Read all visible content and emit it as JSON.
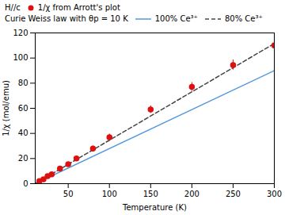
{
  "chart_data": {
    "type": "scatter",
    "title": "",
    "xlabel": "Temperature (K)",
    "ylabel": "1/χ (mol/emu)",
    "xlim": [
      10,
      300
    ],
    "ylim": [
      0,
      120
    ],
    "xticks": [
      50,
      100,
      150,
      200,
      250,
      300
    ],
    "yticks": [
      0,
      20,
      40,
      60,
      80,
      100,
      120
    ],
    "grid": false,
    "legend": "top",
    "annotations": [
      "H//c",
      "Curie Weiss law with θp = 10 K"
    ],
    "series": [
      {
        "name": "1/χ from Arrott's plot",
        "type": "scatter",
        "color": "#dd1111",
        "marker": "circle",
        "x": [
          15,
          20,
          25,
          30,
          40,
          50,
          60,
          80,
          100,
          150,
          200,
          250,
          300
        ],
        "values": [
          2.0,
          3.5,
          6.0,
          7.5,
          12.0,
          15.5,
          20.0,
          28.0,
          37.0,
          59.0,
          77.0,
          94.5,
          110.0
        ],
        "yerr": [
          1.5,
          1.5,
          1.5,
          1.5,
          1.5,
          1.5,
          2.0,
          2.0,
          2.5,
          3.0,
          3.5,
          4.0,
          5.0
        ]
      },
      {
        "name": "100% Ce³⁺",
        "type": "line",
        "color": "#5599dd",
        "line_style": "solid",
        "x": [
          10,
          300
        ],
        "values": [
          0,
          89.987
        ]
      },
      {
        "name": "80% Ce³⁺",
        "type": "line",
        "color": "#444444",
        "line_style": "dashed",
        "x": [
          10,
          300
        ],
        "values": [
          0,
          111.534
        ]
      }
    ]
  }
}
